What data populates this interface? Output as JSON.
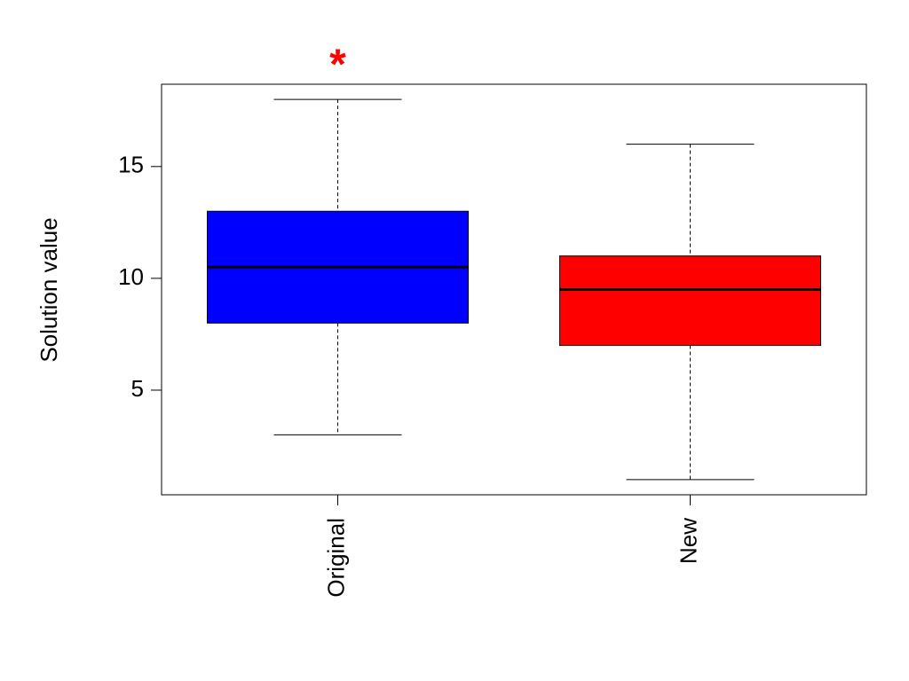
{
  "chart_data": {
    "type": "box",
    "ylabel": "Solution value",
    "categories": [
      "Original",
      "New"
    ],
    "boxes": [
      {
        "min": 3,
        "q1": 8,
        "median": 10.5,
        "q3": 13,
        "max": 18,
        "color": "#0000ff"
      },
      {
        "min": 1,
        "q1": 7,
        "median": 9.5,
        "q3": 11,
        "max": 16,
        "color": "#ff0000"
      }
    ],
    "ylim": [
      0.32,
      18.68
    ],
    "yticks": [
      5,
      10,
      15
    ],
    "annotations": [
      {
        "text": "*",
        "category": "Original",
        "y": 19.84,
        "color": "#ff0000"
      }
    ]
  }
}
